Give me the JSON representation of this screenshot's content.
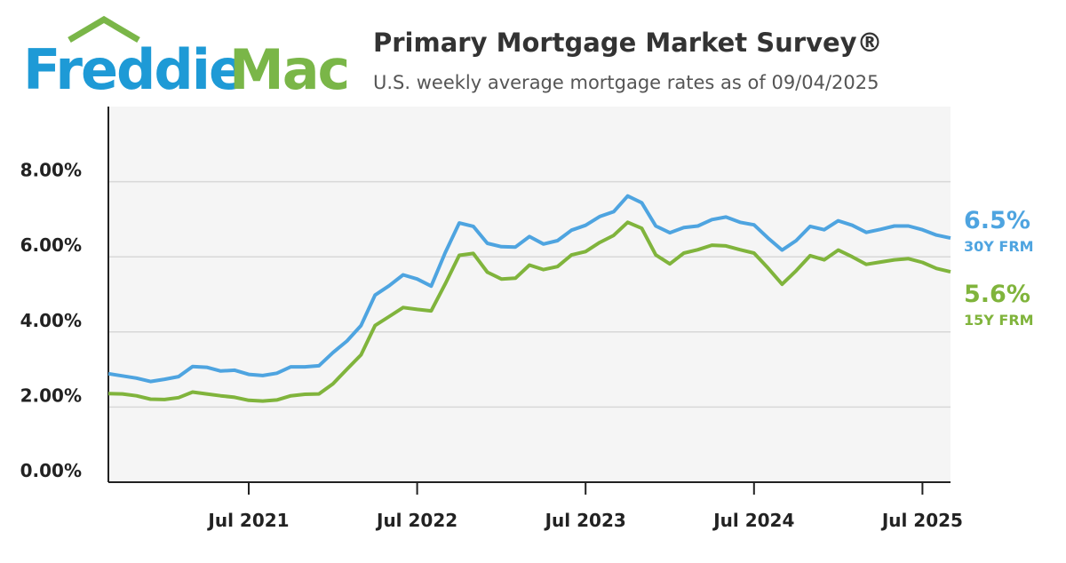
{
  "logo": {
    "left": "Freddie",
    "right": "Mac"
  },
  "chart_data": {
    "type": "line",
    "title": "Primary Mortgage Market Survey®",
    "subtitle": "U.S. weekly average mortgage rates as of 09/04/2025",
    "x": [
      "2020-09",
      "2020-10",
      "2020-11",
      "2020-12",
      "2021-01",
      "2021-02",
      "2021-03",
      "2021-04",
      "2021-05",
      "2021-06",
      "2021-07",
      "2021-08",
      "2021-09",
      "2021-10",
      "2021-11",
      "2021-12",
      "2022-01",
      "2022-02",
      "2022-03",
      "2022-04",
      "2022-05",
      "2022-06",
      "2022-07",
      "2022-08",
      "2022-09",
      "2022-10",
      "2022-11",
      "2022-12",
      "2023-01",
      "2023-02",
      "2023-03",
      "2023-04",
      "2023-05",
      "2023-06",
      "2023-07",
      "2023-08",
      "2023-09",
      "2023-10",
      "2023-11",
      "2023-12",
      "2024-01",
      "2024-02",
      "2024-03",
      "2024-04",
      "2024-05",
      "2024-06",
      "2024-07",
      "2024-08",
      "2024-09",
      "2024-10",
      "2024-11",
      "2024-12",
      "2025-01",
      "2025-02",
      "2025-03",
      "2025-04",
      "2025-05",
      "2025-06",
      "2025-07",
      "2025-08",
      "2025-09"
    ],
    "xlim": [
      "2020-09",
      "2025-09"
    ],
    "xticks": [
      {
        "value": "2021-07",
        "label": "Jul 2021"
      },
      {
        "value": "2022-07",
        "label": "Jul 2022"
      },
      {
        "value": "2023-07",
        "label": "Jul 2023"
      },
      {
        "value": "2024-07",
        "label": "Jul 2024"
      },
      {
        "value": "2025-07",
        "label": "Jul 2025"
      }
    ],
    "ylim": [
      0,
      10
    ],
    "yticks": [
      {
        "value": 0,
        "label": "0.00%"
      },
      {
        "value": 2,
        "label": "2.00%"
      },
      {
        "value": 4,
        "label": "4.00%"
      },
      {
        "value": 6,
        "label": "6.00%"
      },
      {
        "value": 8,
        "label": "8.00%"
      }
    ],
    "grid": true,
    "series": [
      {
        "name": "30Y FRM",
        "color": "#4ea4e0",
        "values": [
          2.89,
          2.83,
          2.77,
          2.68,
          2.74,
          2.81,
          3.08,
          3.06,
          2.96,
          2.98,
          2.87,
          2.84,
          2.9,
          3.07,
          3.07,
          3.1,
          3.45,
          3.76,
          4.17,
          4.98,
          5.23,
          5.52,
          5.41,
          5.22,
          6.11,
          6.9,
          6.81,
          6.36,
          6.27,
          6.26,
          6.54,
          6.34,
          6.43,
          6.71,
          6.84,
          7.07,
          7.2,
          7.62,
          7.44,
          6.82,
          6.64,
          6.78,
          6.82,
          6.99,
          7.06,
          6.92,
          6.85,
          6.5,
          6.18,
          6.43,
          6.81,
          6.72,
          6.96,
          6.84,
          6.65,
          6.73,
          6.82,
          6.82,
          6.72,
          6.58,
          6.5
        ],
        "value_labels": [
          null,
          null,
          null,
          null,
          null,
          null,
          null,
          null,
          null,
          null,
          null,
          null,
          null,
          null,
          null,
          null,
          null,
          null,
          null,
          null,
          null,
          null,
          null,
          null,
          null,
          null,
          null,
          null,
          null,
          null,
          null,
          null,
          null,
          null,
          null,
          null,
          null,
          null,
          null,
          null,
          null,
          null,
          null,
          null,
          null,
          null,
          null,
          null,
          null,
          null,
          null,
          null,
          null,
          null,
          null,
          null,
          null,
          null,
          null,
          null,
          "6.5%"
        ]
      },
      {
        "name": "15Y FRM",
        "color": "#80b43c",
        "values": [
          2.36,
          2.35,
          2.3,
          2.21,
          2.2,
          2.25,
          2.4,
          2.35,
          2.3,
          2.26,
          2.18,
          2.16,
          2.19,
          2.3,
          2.34,
          2.35,
          2.62,
          3.01,
          3.39,
          4.17,
          4.41,
          4.65,
          4.6,
          4.56,
          5.28,
          6.04,
          6.09,
          5.59,
          5.41,
          5.43,
          5.78,
          5.66,
          5.74,
          6.05,
          6.14,
          6.38,
          6.57,
          6.92,
          6.76,
          6.05,
          5.81,
          6.1,
          6.19,
          6.31,
          6.29,
          6.19,
          6.1,
          5.7,
          5.27,
          5.63,
          6.03,
          5.92,
          6.18,
          6.0,
          5.8,
          5.86,
          5.92,
          5.95,
          5.85,
          5.69,
          5.6
        ],
        "value_labels": [
          null,
          null,
          null,
          null,
          null,
          null,
          null,
          null,
          null,
          null,
          null,
          null,
          null,
          null,
          null,
          null,
          null,
          null,
          null,
          null,
          null,
          null,
          null,
          null,
          null,
          null,
          null,
          null,
          null,
          null,
          null,
          null,
          null,
          null,
          null,
          null,
          null,
          null,
          null,
          null,
          null,
          null,
          null,
          null,
          null,
          null,
          null,
          null,
          null,
          null,
          null,
          null,
          null,
          null,
          null,
          null,
          null,
          null,
          null,
          null,
          "5.6%"
        ]
      }
    ]
  }
}
